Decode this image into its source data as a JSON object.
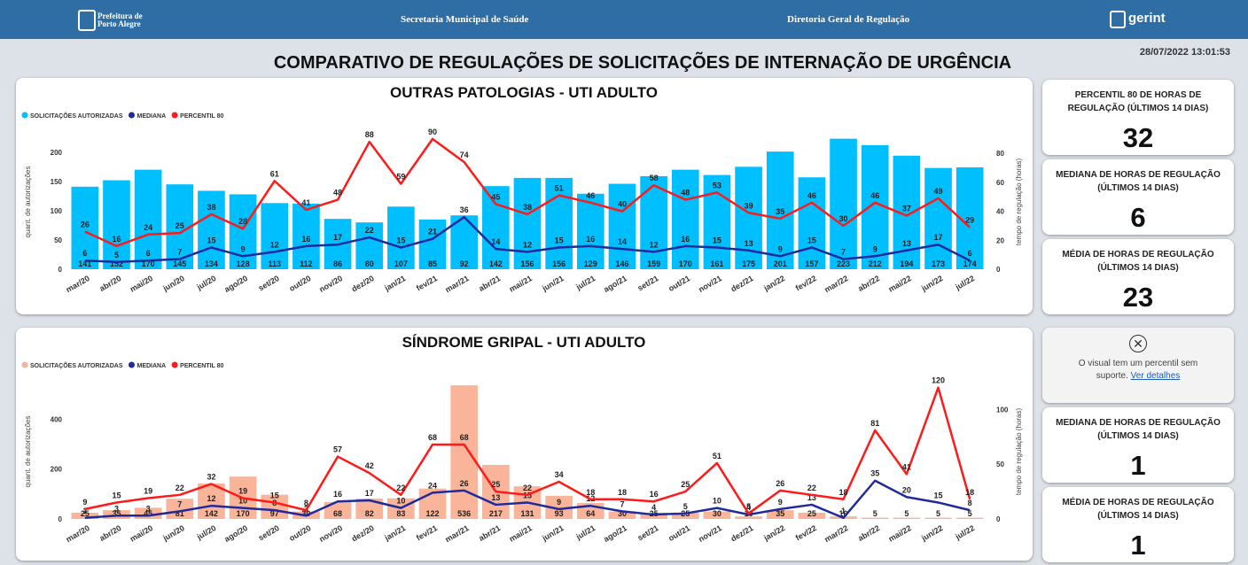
{
  "header": {
    "org": "Prefeitura de Porto Alegre",
    "secretaria": "Secretaria Municipal de Saúde",
    "diretoria": "Diretoria Geral de Regulação",
    "brand": "gerint"
  },
  "timestamp": "28/07/2022 13:01:53",
  "title": "COMPARATIVO DE REGULAÇÕES DE SOLICITAÇÕES DE INTERNAÇÃO DE URGÊNCIA",
  "chart_data": [
    {
      "type": "bar",
      "title": "OUTRAS PATOLOGIAS - UTI ADULTO",
      "ylabel": "quant. de autorizações",
      "y2label": "tempo de regulação (horas)",
      "categories": [
        "mar/20",
        "abr/20",
        "mai/20",
        "jun/20",
        "jul/20",
        "ago/20",
        "set/20",
        "out/20",
        "nov/20",
        "dez/20",
        "jan/21",
        "fev/21",
        "mar/21",
        "abr/21",
        "mai/21",
        "jun/21",
        "jul/21",
        "ago/21",
        "set/21",
        "out/21",
        "nov/21",
        "dez/21",
        "jan/22",
        "fev/22",
        "mar/22",
        "abr/22",
        "mai/22",
        "jun/22",
        "jul/22"
      ],
      "series": [
        {
          "name": "SOLICITAÇÕES AUTORIZADAS",
          "type": "bar",
          "color": "#00bfff",
          "values": [
            141,
            152,
            170,
            145,
            134,
            128,
            113,
            112,
            86,
            80,
            107,
            85,
            92,
            142,
            156,
            156,
            129,
            146,
            159,
            170,
            161,
            175,
            201,
            157,
            223,
            212,
            194,
            173,
            174
          ]
        },
        {
          "name": "MEDIANA",
          "type": "line",
          "axis": "y2",
          "color": "#1f2a9c",
          "values": [
            6,
            5,
            6,
            7,
            15,
            9,
            12,
            16,
            17,
            22,
            15,
            21,
            36,
            14,
            12,
            15,
            16,
            14,
            12,
            16,
            15,
            13,
            9,
            15,
            7,
            9,
            13,
            17,
            6
          ]
        },
        {
          "name": "PERCENTIL 80",
          "type": "line",
          "axis": "y2",
          "color": "#ff1a1a",
          "values": [
            26,
            16,
            24,
            25,
            38,
            28,
            61,
            41,
            48,
            88,
            59,
            90,
            74,
            45,
            38,
            51,
            46,
            40,
            58,
            48,
            53,
            39,
            35,
            46,
            30,
            46,
            37,
            49,
            29
          ]
        }
      ],
      "ylim": [
        0,
        230
      ],
      "yticks": [
        0,
        50,
        100,
        150,
        200
      ],
      "y2lim": [
        0,
        93
      ],
      "y2ticks": [
        0,
        20,
        40,
        60,
        80
      ]
    },
    {
      "type": "bar",
      "title": "SÍNDROME GRIPAL - UTI ADULTO",
      "ylabel": "quant. de autorizações",
      "y2label": "tempo de regulação (horas)",
      "categories": [
        "mar/20",
        "abr/20",
        "mai/20",
        "jun/20",
        "jul/20",
        "ago/20",
        "set/20",
        "out/20",
        "nov/20",
        "dez/20",
        "jan/21",
        "fev/21",
        "mar/21",
        "abr/21",
        "mai/21",
        "jun/21",
        "jul/21",
        "ago/21",
        "set/21",
        "out/21",
        "nov/21",
        "dez/21",
        "jan/22",
        "fev/22",
        "mar/22",
        "abr/22",
        "mai/22",
        "jun/22",
        "jul/22"
      ],
      "series": [
        {
          "name": "SOLICITAÇÕES AUTORIZADAS",
          "type": "bar",
          "color": "#f9b49a",
          "values": [
            25,
            35,
            45,
            81,
            142,
            170,
            97,
            30,
            68,
            82,
            83,
            122,
            536,
            217,
            131,
            93,
            64,
            30,
            25,
            25,
            30,
            10,
            35,
            25,
            10,
            5,
            5,
            5,
            5
          ]
        },
        {
          "name": "MEDIANA",
          "type": "line",
          "axis": "y2",
          "color": "#1f2a9c",
          "values": [
            1,
            3,
            3,
            7,
            12,
            10,
            8,
            3,
            16,
            17,
            10,
            24,
            26,
            13,
            15,
            9,
            12,
            7,
            4,
            5,
            10,
            4,
            9,
            13,
            1,
            35,
            20,
            15,
            8
          ]
        },
        {
          "name": "PERCENTIL 80",
          "type": "line",
          "axis": "y2",
          "color": "#ff1a1a",
          "values": [
            9,
            15,
            19,
            22,
            32,
            19,
            15,
            8,
            57,
            42,
            22,
            68,
            68,
            25,
            22,
            34,
            18,
            18,
            16,
            25,
            51,
            5,
            26,
            22,
            18,
            81,
            41,
            120,
            18
          ]
        }
      ],
      "ylim": [
        0,
        540
      ],
      "yticks": [
        0,
        200,
        400
      ],
      "y2lim": [
        0,
        123
      ],
      "y2ticks": [
        0,
        50,
        100
      ]
    }
  ],
  "cards": [
    {
      "title": "PERCENTIL 80 DE HORAS DE REGULAÇÃO (ÚLTIMOS 14 DIAS)",
      "value": 32
    },
    {
      "title": "MEDIANA DE HORAS DE REGULAÇÃO (ÚLTIMOS 14 DIAS)",
      "value": 6
    },
    {
      "title": "MÉDIA DE HORAS DE REGULAÇÃO (ÚLTIMOS 14 DIAS)",
      "value": 23
    },
    {
      "title": "MEDIANA DE HORAS DE REGULAÇÃO (ÚLTIMOS 14 DIAS)",
      "value": 1
    },
    {
      "title": "MÉDIA DE HORAS DE REGULAÇÃO (ÚLTIMOS 14 DIAS)",
      "value": 1
    }
  ],
  "error_card": {
    "message": "O visual tem um percentil sem suporte.",
    "link": "Ver detalhes"
  }
}
